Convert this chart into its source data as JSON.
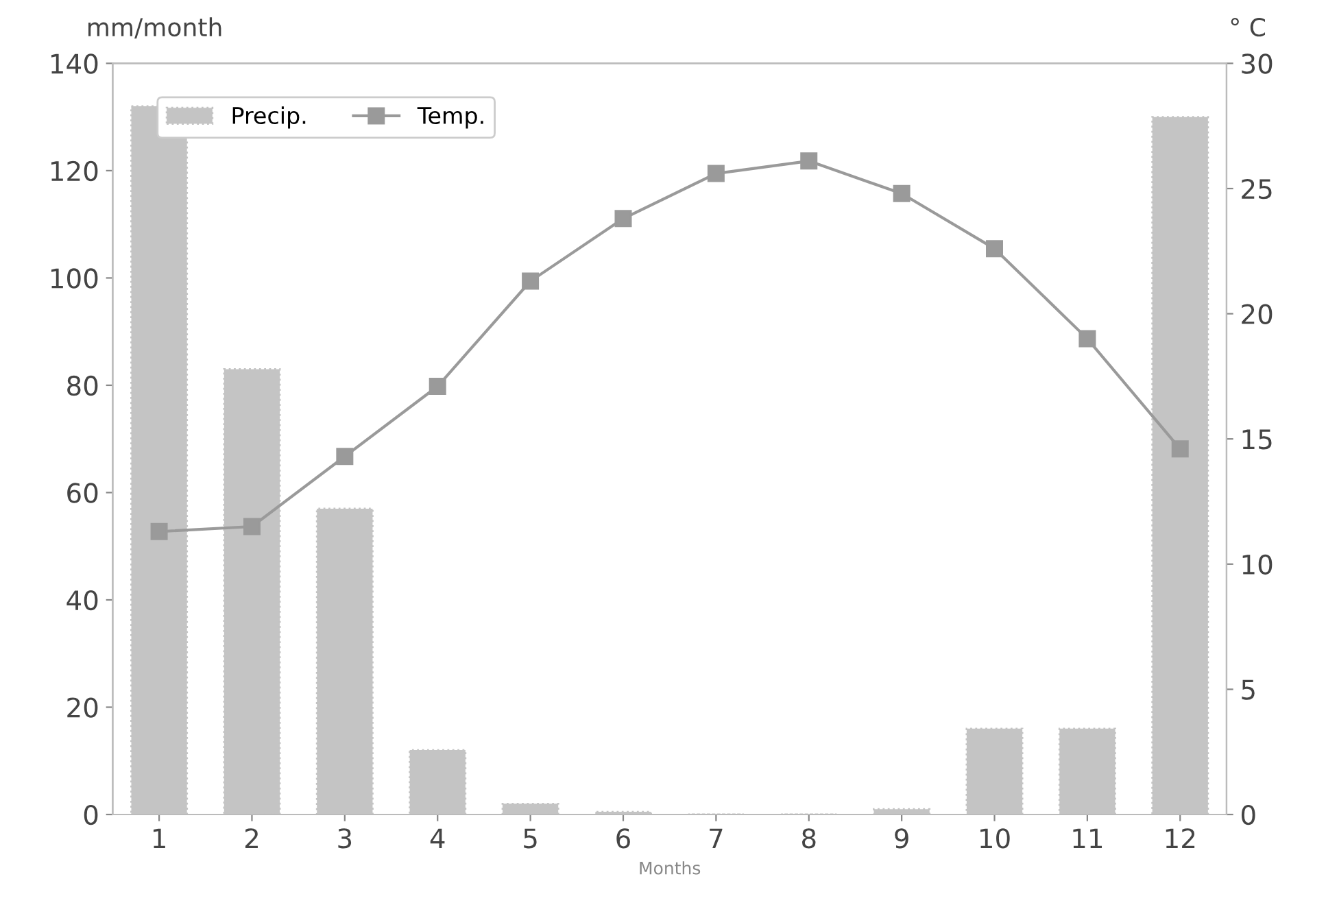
{
  "chart_data": {
    "type": "bar",
    "categories": [
      "1",
      "2",
      "3",
      "4",
      "5",
      "6",
      "7",
      "8",
      "9",
      "10",
      "11",
      "12"
    ],
    "xlabel": "Months",
    "ylabel": "mm/month",
    "y2label": "° C",
    "ylim": [
      0,
      140
    ],
    "yticks": [
      0,
      20,
      40,
      60,
      80,
      100,
      120,
      140
    ],
    "y2lim": [
      0,
      30
    ],
    "y2ticks": [
      0,
      5,
      10,
      15,
      20,
      25,
      30
    ],
    "legend": "top left",
    "grid": false,
    "series": [
      {
        "name": "Precip.",
        "color": "#c4c4c4",
        "values": [
          132,
          83,
          57,
          12,
          2,
          0.5,
          0,
          0,
          1,
          16,
          16,
          130
        ]
      },
      {
        "name": "Temp.",
        "type": "line",
        "axis": "y2",
        "color": "#9a9a9a",
        "marker": "square",
        "values": [
          11.3,
          11.5,
          14.3,
          17.1,
          21.3,
          23.8,
          25.6,
          26.1,
          24.8,
          22.6,
          19.0,
          14.6
        ]
      }
    ]
  }
}
